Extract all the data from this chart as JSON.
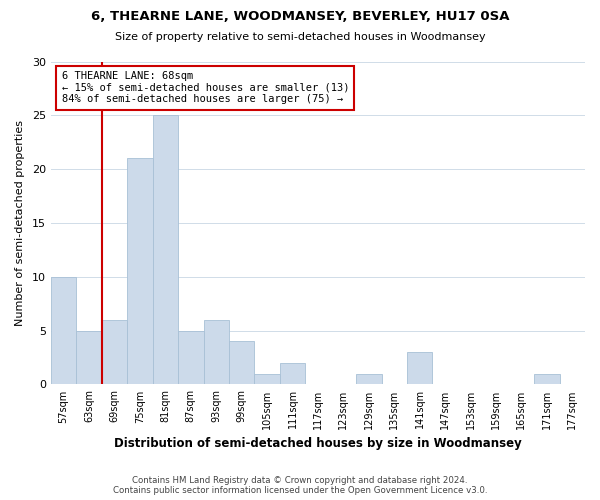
{
  "title": "6, THEARNE LANE, WOODMANSEY, BEVERLEY, HU17 0SA",
  "subtitle": "Size of property relative to semi-detached houses in Woodmansey",
  "xlabel": "Distribution of semi-detached houses by size in Woodmansey",
  "ylabel": "Number of semi-detached properties",
  "footer_line1": "Contains HM Land Registry data © Crown copyright and database right 2024.",
  "footer_line2": "Contains public sector information licensed under the Open Government Licence v3.0.",
  "bar_color": "#ccdaea",
  "bar_edge_color": "#a8c0d6",
  "property_line_color": "#cc0000",
  "smaller_pct": 15,
  "smaller_count": 13,
  "larger_pct": 84,
  "larger_count": 75,
  "annotation_box_color": "#ffffff",
  "annotation_box_edge": "#cc0000",
  "categories": [
    "57sqm",
    "63sqm",
    "69sqm",
    "75sqm",
    "81sqm",
    "87sqm",
    "93sqm",
    "99sqm",
    "105sqm",
    "111sqm",
    "117sqm",
    "123sqm",
    "129sqm",
    "135sqm",
    "141sqm",
    "147sqm",
    "153sqm",
    "159sqm",
    "165sqm",
    "171sqm",
    "177sqm"
  ],
  "values": [
    10,
    5,
    6,
    21,
    25,
    5,
    6,
    4,
    1,
    2,
    0,
    0,
    1,
    0,
    3,
    0,
    0,
    0,
    0,
    1,
    0
  ],
  "ylim_max": 30,
  "yticks": [
    0,
    5,
    10,
    15,
    20,
    25,
    30
  ],
  "property_bin_index": 1.5,
  "ann_text_line1": "6 THEARNE LANE: 68sqm",
  "ann_text_line2": "← 15% of semi-detached houses are smaller (13)",
  "ann_text_line3": "84% of semi-detached houses are larger (75) →"
}
